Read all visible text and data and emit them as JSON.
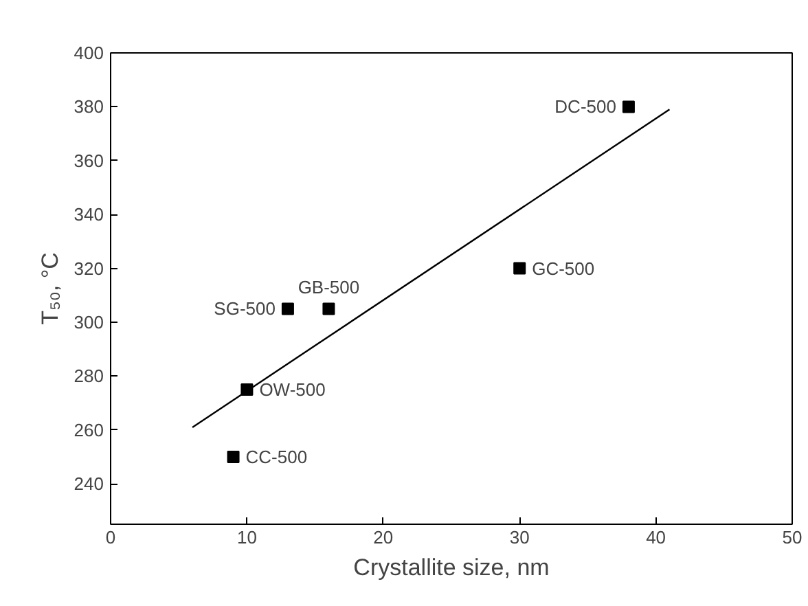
{
  "chart_data": {
    "type": "scatter",
    "xlabel": "Crystallite size, nm",
    "ylabel": "T₅₀, °C",
    "xlim": [
      0,
      50
    ],
    "ylim": [
      225,
      400
    ],
    "xticks": [
      0,
      10,
      20,
      30,
      40,
      50
    ],
    "yticks": [
      240,
      260,
      280,
      300,
      320,
      340,
      360,
      380,
      400
    ],
    "grid": false,
    "marker": "square",
    "series": [
      {
        "color": "#000000",
        "x": [
          9,
          10,
          13,
          16,
          30,
          38
        ],
        "values": [
          250,
          275,
          305,
          305,
          320,
          380
        ]
      },
      {
        "type": "line",
        "color": "#000000",
        "x": [
          6,
          41
        ],
        "values": [
          261,
          379
        ],
        "marker": "none"
      }
    ],
    "annotations": [
      {
        "text": "CC-500",
        "x": 9,
        "y": 250
      },
      {
        "text": "OW-500",
        "x": 10,
        "y": 275
      },
      {
        "text": "SG-500",
        "x": 13,
        "y": 305
      },
      {
        "text": "GB-500",
        "x": 16,
        "y": 305
      },
      {
        "text": "GC-500",
        "x": 30,
        "y": 320
      },
      {
        "text": "DC-500",
        "x": 38,
        "y": 380
      }
    ]
  }
}
